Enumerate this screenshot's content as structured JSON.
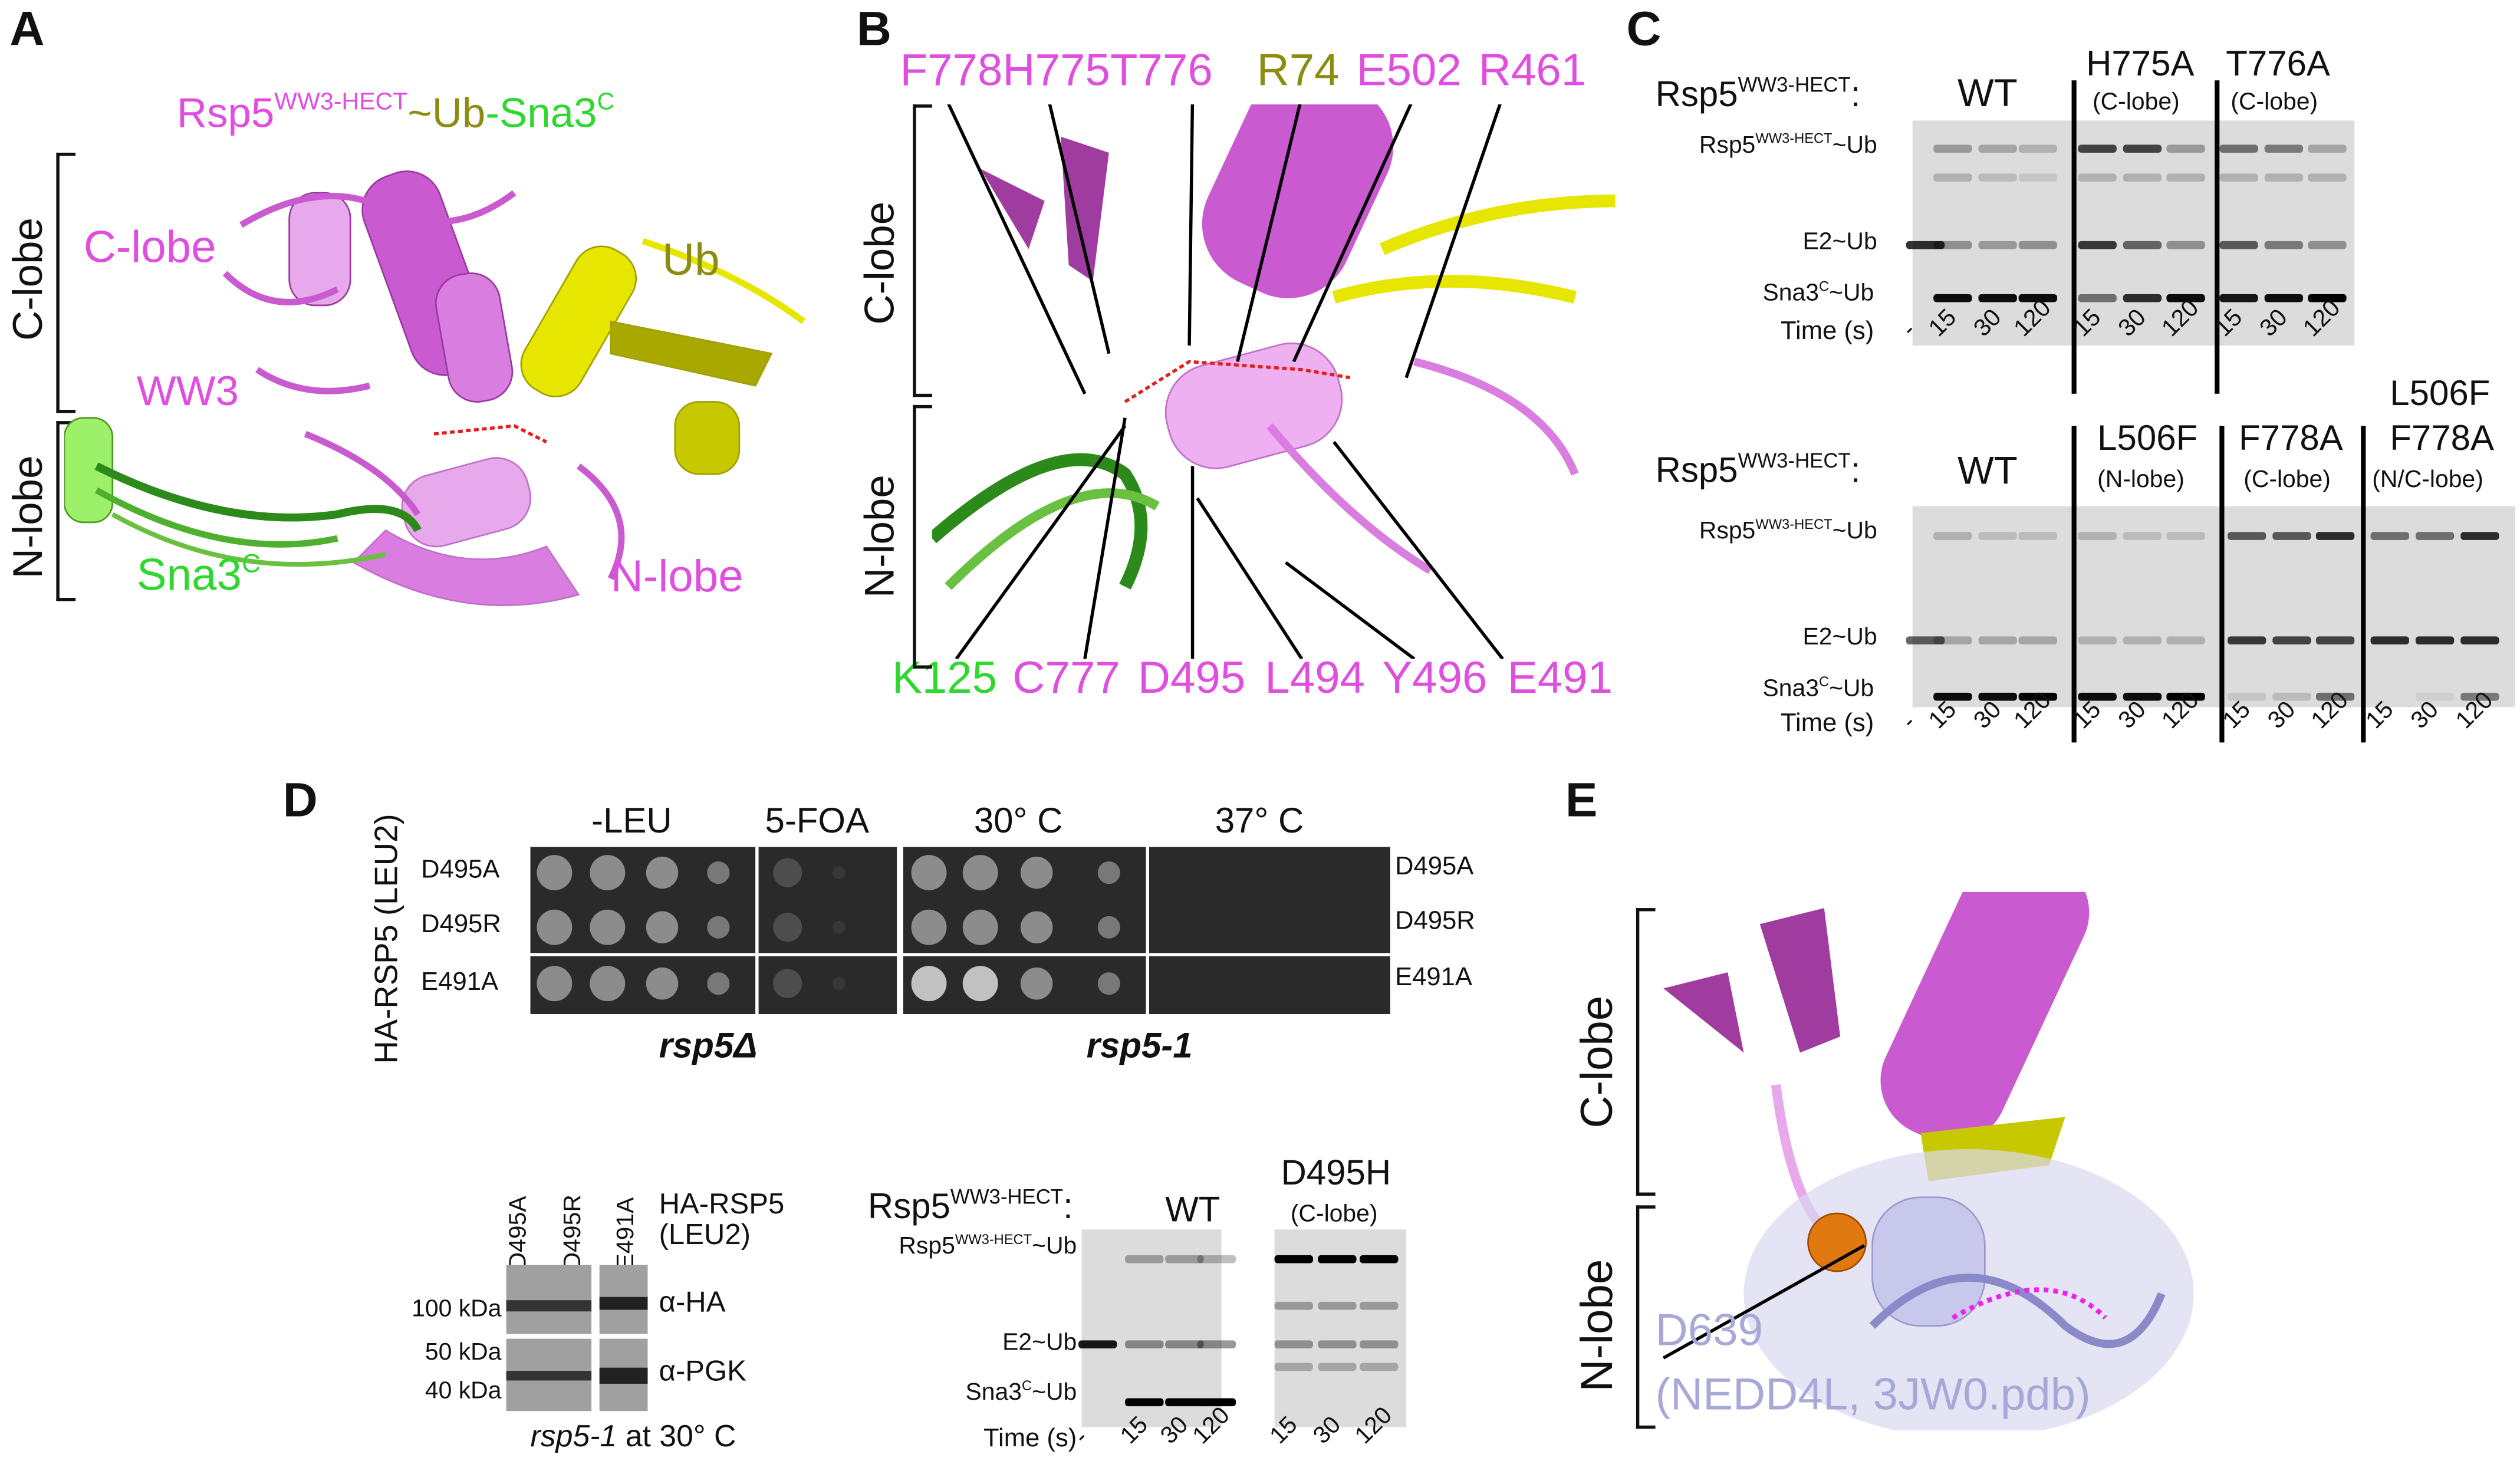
{
  "panel_a": {
    "letter": "A",
    "title": {
      "rsp5": "Rsp5",
      "rsp5_sup": "WW3-HECT",
      "ub": "~Ub",
      "sna3": "-Sna3",
      "sna3_sup": "C"
    },
    "bracket_c": "C-lobe",
    "bracket_n": "N-lobe",
    "labels": {
      "c_lobe": "C-lobe",
      "ww3": "WW3",
      "ub": "Ub",
      "n_lobe": "N-lobe",
      "sna3": "Sna3",
      "sna3_sup": "C"
    }
  },
  "panel_b": {
    "letter": "B",
    "bracket_c": "C-lobe",
    "bracket_n": "N-lobe",
    "top_residues": [
      "F778",
      "H775",
      "T776",
      "R74",
      "E502",
      "R461"
    ],
    "bottom_residues": [
      "K125",
      "C777",
      "D495",
      "L494",
      "Y496",
      "E491"
    ]
  },
  "panel_c": {
    "letter": "C",
    "gels": [
      {
        "construct": "Rsp5",
        "construct_sup": "WW3-HECT",
        "colon": ":",
        "groups": [
          {
            "name": "WT",
            "sub": ""
          },
          {
            "name": "H775A",
            "sub": "(C-lobe)"
          },
          {
            "name": "T776A",
            "sub": "(C-lobe)"
          }
        ],
        "times": [
          "-",
          "15",
          "30",
          "120",
          "15",
          "30",
          "120",
          "15",
          "30",
          "120"
        ]
      },
      {
        "construct": "Rsp5",
        "construct_sup": "WW3-HECT",
        "colon": ":",
        "groups": [
          {
            "name": "WT",
            "sub": ""
          },
          {
            "name": "L506F",
            "sub": "(N-lobe)"
          },
          {
            "name": "F778A",
            "sub": "(C-lobe)"
          },
          {
            "name": "L506F F778A",
            "name1": "L506F",
            "name2": "F778A",
            "sub": "(N/C-lobe)"
          }
        ],
        "times": [
          "-",
          "15",
          "30",
          "120",
          "15",
          "30",
          "120",
          "15",
          "30",
          "120",
          "15",
          "30",
          "120"
        ]
      }
    ],
    "rows": {
      "thioester": {
        "main": "Rsp5",
        "sup": "WW3-HECT",
        "tail": "~Ub"
      },
      "e2": "E2~Ub",
      "product": {
        "main": "Sna3",
        "sup": "C",
        "tail": "~Ub"
      },
      "time": "Time (s)"
    }
  },
  "panel_d": {
    "letter": "D",
    "y_label": "HA-RSP5 (LEU2)",
    "conditions": [
      "-LEU",
      "5-FOA",
      "30° C",
      "37° C"
    ],
    "strains": [
      "D495A",
      "D495R",
      "E491A"
    ],
    "backgrounds": [
      "rsp5Δ",
      "rsp5-1"
    ],
    "western": {
      "lanes": [
        "D495A",
        "D495R",
        "E491A"
      ],
      "construct": [
        "HA-RSP5",
        "(LEU2)"
      ],
      "markers": [
        "100 kDa",
        "50 kDa",
        "40 kDa"
      ],
      "antibodies": [
        "α-HA",
        "α-PGK"
      ],
      "caption_italic": "rsp5-1",
      "caption_rest": " at 30° C"
    },
    "gel": {
      "construct": "Rsp5",
      "construct_sup": "WW3-HECT",
      "colon": ":",
      "groups": [
        {
          "name": "WT",
          "sub": ""
        },
        {
          "name": "D495H",
          "sub": "(C-lobe)"
        }
      ],
      "times": [
        "-",
        "15",
        "30",
        "120",
        "15",
        "30",
        "120"
      ]
    }
  },
  "panel_e": {
    "letter": "E",
    "bracket_c": "C-lobe",
    "bracket_n": "N-lobe",
    "residue": "D639",
    "source": "(NEDD4L, 3JW0.pdb)"
  },
  "colors": {
    "rsp5": "#e04ee0",
    "ub": "#8c8c10",
    "sna3": "#2fd82f",
    "nedd4l": "#a8a8d8"
  }
}
